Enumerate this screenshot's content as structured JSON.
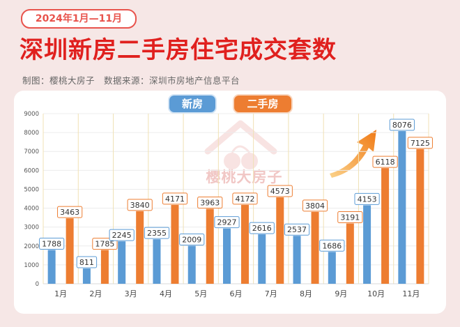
{
  "header": {
    "badge": "2024年1月—11月",
    "title": "深圳新房二手房住宅成交套数",
    "source": "制图：樱桃大房子　数据来源：深圳市房地产信息平台"
  },
  "watermark": "樱桃大房子",
  "colors": {
    "new": "#5b9bd5",
    "second": "#ed7d31",
    "accent": "#e0201e"
  },
  "chart_data": {
    "type": "bar",
    "title": "深圳新房二手房住宅成交套数",
    "categories": [
      "1月",
      "2月",
      "3月",
      "4月",
      "5月",
      "6月",
      "7月",
      "8月",
      "9月",
      "10月",
      "11月"
    ],
    "series": [
      {
        "name": "新房",
        "values": [
          1788,
          811,
          2245,
          2355,
          2009,
          2927,
          2616,
          2537,
          1686,
          4153,
          8076
        ]
      },
      {
        "name": "二手房",
        "values": [
          3463,
          1785,
          3840,
          4171,
          3963,
          4172,
          4573,
          3804,
          3191,
          6118,
          7125
        ]
      }
    ],
    "ylim": [
      0,
      9000
    ],
    "yticks": [
      "0",
      "1000",
      "2000",
      "3000",
      "4000",
      "5000",
      "6000",
      "7000",
      "8000",
      "9000"
    ],
    "grid": true,
    "legend": "top-center"
  }
}
